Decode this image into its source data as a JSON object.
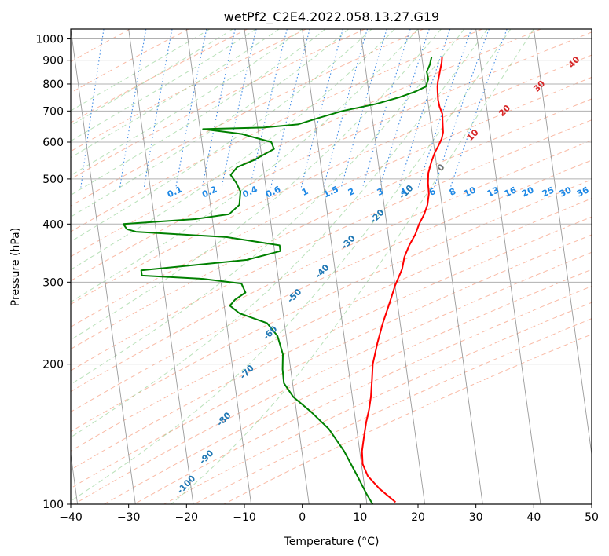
{
  "chart_data": {
    "type": "line",
    "title": "wetPf2_C2E4.2022.058.13.27.G19",
    "xlabel": "Temperature (°C)",
    "ylabel": "Pressure (hPa)",
    "xlim": [
      -40,
      50
    ],
    "ylim": [
      1050,
      100
    ],
    "y_scale": "log",
    "grid": true,
    "x_ticks": [
      "−40",
      "−30",
      "−20",
      "−10",
      "0",
      "10",
      "20",
      "30",
      "40",
      "50"
    ],
    "x_tick_values": [
      -40,
      -30,
      -20,
      -10,
      0,
      10,
      20,
      30,
      40,
      50
    ],
    "y_ticks": [
      "100",
      "200",
      "300",
      "400",
      "500",
      "600",
      "700",
      "800",
      "900",
      "1000"
    ],
    "y_tick_values": [
      100,
      200,
      300,
      400,
      500,
      600,
      700,
      800,
      900,
      1000
    ],
    "series": [
      {
        "color": "#ff0000",
        "points": [
          [
            23.5,
            915
          ],
          [
            23.3,
            890
          ],
          [
            22.9,
            860
          ],
          [
            22.5,
            830
          ],
          [
            22.2,
            810
          ],
          [
            22.0,
            790
          ],
          [
            21.9,
            770
          ],
          [
            21.8,
            740
          ],
          [
            21.9,
            715
          ],
          [
            22.2,
            690
          ],
          [
            22.1,
            670
          ],
          [
            22.0,
            650
          ],
          [
            21.9,
            630
          ],
          [
            21.5,
            610
          ],
          [
            20.8,
            590
          ],
          [
            20.0,
            570
          ],
          [
            19.2,
            545
          ],
          [
            18.4,
            515
          ],
          [
            18.1,
            490
          ],
          [
            18.0,
            465
          ],
          [
            17.5,
            440
          ],
          [
            16.7,
            420
          ],
          [
            15.6,
            400
          ],
          [
            14.7,
            380
          ],
          [
            13.4,
            360
          ],
          [
            12.3,
            340
          ],
          [
            11.6,
            320
          ],
          [
            10.0,
            295
          ],
          [
            8.6,
            270
          ],
          [
            7.0,
            245
          ],
          [
            5.6,
            222
          ],
          [
            4.3,
            200
          ],
          [
            3.8,
            185
          ],
          [
            3.2,
            170
          ],
          [
            2.6,
            160
          ],
          [
            1.8,
            150
          ],
          [
            1.1,
            140
          ],
          [
            0.4,
            130
          ],
          [
            0.2,
            122
          ],
          [
            0.8,
            115
          ],
          [
            2.5,
            108
          ],
          [
            5.0,
            101
          ]
        ]
      },
      {
        "color": "#008000",
        "points": [
          [
            21.7,
            915
          ],
          [
            21.2,
            880
          ],
          [
            20.5,
            850
          ],
          [
            20.6,
            820
          ],
          [
            20.0,
            790
          ],
          [
            18.0,
            770
          ],
          [
            15.3,
            750
          ],
          [
            11.0,
            725
          ],
          [
            5.0,
            700
          ],
          [
            0.5,
            675
          ],
          [
            -3.0,
            655
          ],
          [
            -9.0,
            645
          ],
          [
            -19.5,
            640
          ],
          [
            -13.0,
            625
          ],
          [
            -8.0,
            600
          ],
          [
            -7.7,
            580
          ],
          [
            -9.5,
            565
          ],
          [
            -11.3,
            550
          ],
          [
            -14.5,
            530
          ],
          [
            -15.8,
            510
          ],
          [
            -15.0,
            490
          ],
          [
            -14.5,
            470
          ],
          [
            -15.0,
            440
          ],
          [
            -17.0,
            420
          ],
          [
            -23.0,
            410
          ],
          [
            -35.5,
            400
          ],
          [
            -35.0,
            390
          ],
          [
            -33.5,
            385
          ],
          [
            -18.0,
            375
          ],
          [
            -9.0,
            360
          ],
          [
            -9.0,
            350
          ],
          [
            -15.0,
            335
          ],
          [
            -33.5,
            318
          ],
          [
            -33.5,
            310
          ],
          [
            -23.0,
            305
          ],
          [
            -16.5,
            298
          ],
          [
            -16.0,
            285
          ],
          [
            -18.0,
            275
          ],
          [
            -19.0,
            267
          ],
          [
            -17.5,
            257
          ],
          [
            -13.0,
            245
          ],
          [
            -11.5,
            230
          ],
          [
            -11.0,
            210
          ],
          [
            -11.4,
            195
          ],
          [
            -11.5,
            182
          ],
          [
            -10.2,
            170
          ],
          [
            -7.5,
            158
          ],
          [
            -4.8,
            145
          ],
          [
            -2.7,
            130
          ],
          [
            -1.0,
            115
          ],
          [
            0.2,
            105
          ],
          [
            1.0,
            100
          ]
        ]
      }
    ],
    "dry_adiabat_labels": [
      "-100",
      "-90",
      "-80",
      "-70",
      "-60",
      "-50",
      "-40",
      "-30",
      "-20",
      "-10",
      "0",
      "10",
      "20",
      "30",
      "40"
    ],
    "dry_adiabat_positions": [
      [
        -20.0,
        110
      ],
      [
        -16.5,
        126
      ],
      [
        -13.5,
        152
      ],
      [
        -9.5,
        192
      ],
      [
        -5.5,
        233
      ],
      [
        -1.3,
        280
      ],
      [
        3.5,
        316
      ],
      [
        8.0,
        365
      ],
      [
        13.0,
        415
      ],
      [
        18.0,
        468
      ],
      [
        24.0,
        528
      ],
      [
        29.5,
        620
      ],
      [
        35.0,
        700
      ],
      [
        41.0,
        790
      ],
      [
        47.0,
        890
      ]
    ],
    "mixing_ratio_labels": [
      "0.1",
      "0.2",
      "0.4",
      "0.6",
      "1",
      "1.5",
      "2",
      "3",
      "4",
      "6",
      "8",
      "10",
      "13",
      "16",
      "20",
      "25",
      "30",
      "36"
    ],
    "mixing_ratio_positions": [
      [
        -22.0,
        468
      ],
      [
        -16.0,
        468
      ],
      [
        -9.0,
        468
      ],
      [
        -5.0,
        468
      ],
      [
        0.5,
        468
      ],
      [
        5.0,
        468
      ],
      [
        8.5,
        468
      ],
      [
        13.5,
        468
      ],
      [
        17.5,
        468
      ],
      [
        22.5,
        468
      ],
      [
        26.0,
        468
      ],
      [
        29.0,
        468
      ],
      [
        33.0,
        468
      ],
      [
        36.0,
        468
      ],
      [
        39.0,
        468
      ],
      [
        42.5,
        468
      ],
      [
        45.5,
        468
      ],
      [
        48.5,
        468
      ]
    ]
  }
}
